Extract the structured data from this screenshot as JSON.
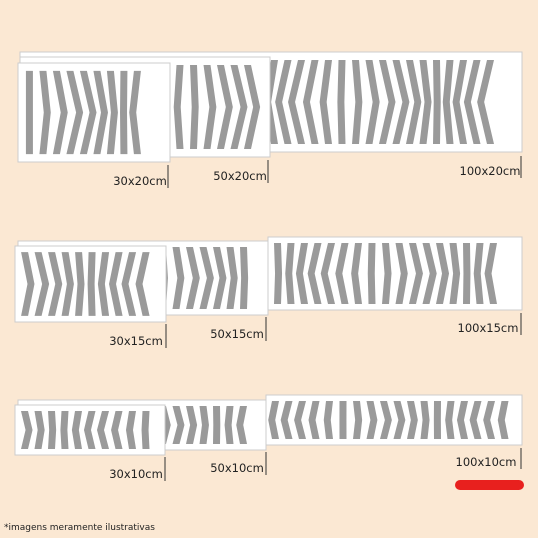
{
  "groups": [
    {
      "sizes": [
        "30x20cm",
        "50x20cm",
        "100x20cm"
      ]
    },
    {
      "sizes": [
        "30x15cm",
        "50x15cm",
        "100x15cm"
      ]
    },
    {
      "sizes": [
        "30x10cm",
        "50x10cm",
        "100x10cm"
      ]
    }
  ],
  "note": "*imagens meramente ilustrativas"
}
